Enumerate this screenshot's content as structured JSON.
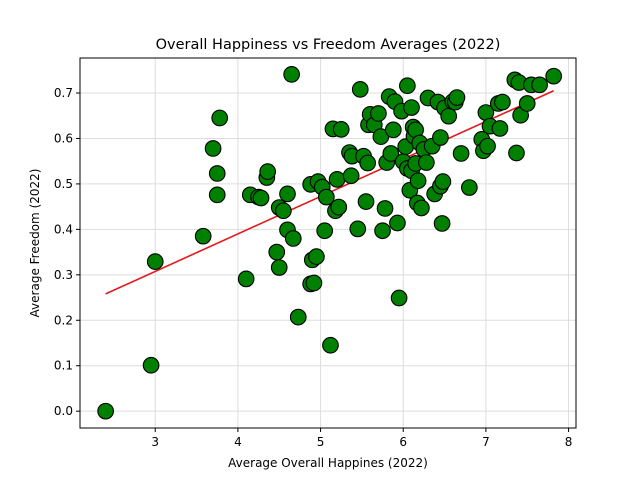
{
  "chart_data": {
    "type": "scatter",
    "title": "Overall Happiness vs Freedom Averages (2022)",
    "xlabel": "Average Overall Happines (2022)",
    "ylabel": "Average Freedom (2022)",
    "xlim": [
      2.09,
      8.09
    ],
    "ylim": [
      -0.037,
      0.777
    ],
    "xticks": [
      3,
      4,
      5,
      6,
      7,
      8
    ],
    "yticks": [
      0.0,
      0.1,
      0.2,
      0.3,
      0.4,
      0.5,
      0.6,
      0.7
    ],
    "xtick_labels": [
      "3",
      "4",
      "5",
      "6",
      "7",
      "8"
    ],
    "ytick_labels": [
      "0.0",
      "0.1",
      "0.2",
      "0.3",
      "0.4",
      "0.5",
      "0.6",
      "0.7"
    ],
    "grid": true,
    "legend": "none",
    "colors": {
      "marker_fill": "#008000",
      "marker_edge": "#000000",
      "trend_line": "#e31a1c",
      "grid": "#dddddd"
    },
    "trend_line": {
      "x": [
        2.4,
        7.82
      ],
      "y": [
        0.258,
        0.705
      ]
    },
    "points": [
      [
        2.4,
        0.0
      ],
      [
        2.95,
        0.101
      ],
      [
        3.0,
        0.329
      ],
      [
        3.58,
        0.385
      ],
      [
        3.7,
        0.578
      ],
      [
        3.75,
        0.523
      ],
      [
        3.75,
        0.476
      ],
      [
        3.78,
        0.645
      ],
      [
        4.1,
        0.291
      ],
      [
        4.15,
        0.476
      ],
      [
        4.25,
        0.471
      ],
      [
        4.28,
        0.469
      ],
      [
        4.35,
        0.514
      ],
      [
        4.36,
        0.527
      ],
      [
        4.47,
        0.35
      ],
      [
        4.5,
        0.316
      ],
      [
        4.5,
        0.448
      ],
      [
        4.55,
        0.441
      ],
      [
        4.6,
        0.478
      ],
      [
        4.6,
        0.399
      ],
      [
        4.65,
        0.741
      ],
      [
        4.67,
        0.38
      ],
      [
        4.73,
        0.207
      ],
      [
        4.88,
        0.499
      ],
      [
        4.88,
        0.28
      ],
      [
        4.9,
        0.333
      ],
      [
        4.92,
        0.282
      ],
      [
        4.95,
        0.34
      ],
      [
        4.97,
        0.505
      ],
      [
        5.02,
        0.493
      ],
      [
        5.05,
        0.397
      ],
      [
        5.07,
        0.471
      ],
      [
        5.12,
        0.145
      ],
      [
        5.15,
        0.621
      ],
      [
        5.18,
        0.441
      ],
      [
        5.2,
        0.51
      ],
      [
        5.22,
        0.449
      ],
      [
        5.25,
        0.62
      ],
      [
        5.35,
        0.569
      ],
      [
        5.37,
        0.518
      ],
      [
        5.38,
        0.561
      ],
      [
        5.45,
        0.401
      ],
      [
        5.48,
        0.708
      ],
      [
        5.52,
        0.561
      ],
      [
        5.55,
        0.461
      ],
      [
        5.57,
        0.546
      ],
      [
        5.58,
        0.63
      ],
      [
        5.6,
        0.653
      ],
      [
        5.65,
        0.63
      ],
      [
        5.7,
        0.655
      ],
      [
        5.73,
        0.604
      ],
      [
        5.75,
        0.397
      ],
      [
        5.78,
        0.446
      ],
      [
        5.8,
        0.547
      ],
      [
        5.83,
        0.692
      ],
      [
        5.85,
        0.567
      ],
      [
        5.88,
        0.619
      ],
      [
        5.9,
        0.681
      ],
      [
        5.93,
        0.414
      ],
      [
        5.95,
        0.249
      ],
      [
        5.98,
        0.66
      ],
      [
        6.0,
        0.549
      ],
      [
        6.03,
        0.582
      ],
      [
        6.05,
        0.716
      ],
      [
        6.05,
        0.534
      ],
      [
        6.08,
        0.486
      ],
      [
        6.1,
        0.668
      ],
      [
        6.1,
        0.529
      ],
      [
        6.12,
        0.625
      ],
      [
        6.13,
        0.605
      ],
      [
        6.15,
        0.619
      ],
      [
        6.15,
        0.545
      ],
      [
        6.17,
        0.458
      ],
      [
        6.18,
        0.507
      ],
      [
        6.2,
        0.59
      ],
      [
        6.22,
        0.447
      ],
      [
        6.25,
        0.576
      ],
      [
        6.28,
        0.547
      ],
      [
        6.3,
        0.689
      ],
      [
        6.35,
        0.583
      ],
      [
        6.38,
        0.478
      ],
      [
        6.42,
        0.68
      ],
      [
        6.45,
        0.495
      ],
      [
        6.45,
        0.602
      ],
      [
        6.47,
        0.413
      ],
      [
        6.48,
        0.505
      ],
      [
        6.5,
        0.667
      ],
      [
        6.55,
        0.649
      ],
      [
        6.6,
        0.681
      ],
      [
        6.63,
        0.68
      ],
      [
        6.65,
        0.69
      ],
      [
        6.7,
        0.567
      ],
      [
        6.8,
        0.492
      ],
      [
        6.95,
        0.598
      ],
      [
        6.97,
        0.573
      ],
      [
        7.0,
        0.657
      ],
      [
        7.02,
        0.583
      ],
      [
        7.05,
        0.627
      ],
      [
        7.15,
        0.677
      ],
      [
        7.17,
        0.622
      ],
      [
        7.2,
        0.68
      ],
      [
        7.35,
        0.729
      ],
      [
        7.37,
        0.568
      ],
      [
        7.4,
        0.723
      ],
      [
        7.42,
        0.651
      ],
      [
        7.5,
        0.677
      ],
      [
        7.55,
        0.718
      ],
      [
        7.65,
        0.718
      ],
      [
        7.82,
        0.737
      ]
    ]
  }
}
